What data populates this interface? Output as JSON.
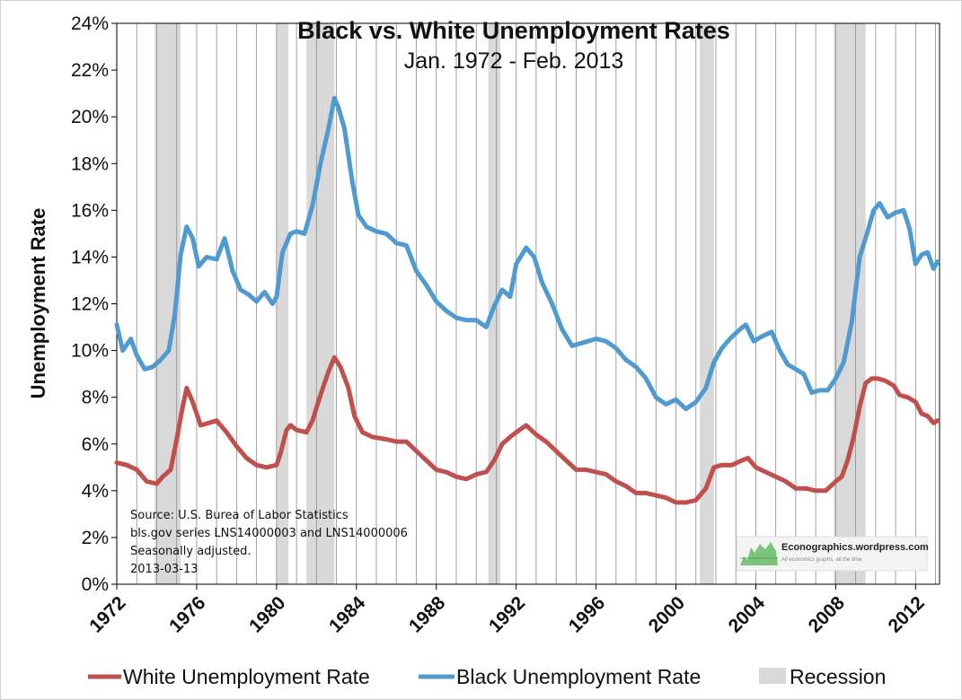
{
  "chart_data": {
    "type": "line",
    "title": "Black vs. White Unemployment Rates",
    "subtitle": "Jan. 1972 - Feb. 2013",
    "ylabel": "Unemployment Rate",
    "xlabel": "",
    "xlim": [
      1972,
      2013.2
    ],
    "ylim": [
      0,
      24
    ],
    "y_ticks": [
      "0%",
      "2%",
      "4%",
      "6%",
      "8%",
      "10%",
      "12%",
      "14%",
      "16%",
      "18%",
      "20%",
      "22%",
      "24%"
    ],
    "x_ticks": [
      "1972",
      "1976",
      "1980",
      "1984",
      "1988",
      "1992",
      "1996",
      "2000",
      "2004",
      "2008",
      "2012"
    ],
    "grid": "vertical at each year",
    "legend_position": "bottom",
    "legend": [
      "White Unemployment Rate",
      "Black Unemployment Rate",
      "Recession"
    ],
    "recessions": [
      [
        1973.9,
        1975.2
      ],
      [
        1980.0,
        1980.6
      ],
      [
        1981.5,
        1982.9
      ],
      [
        1990.6,
        1991.2
      ],
      [
        2001.2,
        2001.9
      ],
      [
        2007.9,
        2009.5
      ]
    ],
    "series": [
      {
        "name": "White Unemployment Rate",
        "color": "#c0504d",
        "points": [
          [
            1972.0,
            5.2
          ],
          [
            1972.5,
            5.1
          ],
          [
            1973.0,
            4.9
          ],
          [
            1973.5,
            4.4
          ],
          [
            1974.0,
            4.3
          ],
          [
            1974.3,
            4.6
          ],
          [
            1974.7,
            4.9
          ],
          [
            1975.0,
            6.2
          ],
          [
            1975.3,
            7.6
          ],
          [
            1975.5,
            8.4
          ],
          [
            1975.8,
            7.8
          ],
          [
            1976.2,
            6.8
          ],
          [
            1976.6,
            6.9
          ],
          [
            1977.0,
            7.0
          ],
          [
            1977.5,
            6.5
          ],
          [
            1978.0,
            5.9
          ],
          [
            1978.5,
            5.4
          ],
          [
            1979.0,
            5.1
          ],
          [
            1979.5,
            5.0
          ],
          [
            1980.0,
            5.1
          ],
          [
            1980.2,
            5.6
          ],
          [
            1980.5,
            6.6
          ],
          [
            1980.7,
            6.8
          ],
          [
            1981.0,
            6.6
          ],
          [
            1981.5,
            6.5
          ],
          [
            1981.8,
            7.0
          ],
          [
            1982.2,
            8.1
          ],
          [
            1982.6,
            9.1
          ],
          [
            1982.9,
            9.7
          ],
          [
            1983.2,
            9.3
          ],
          [
            1983.6,
            8.4
          ],
          [
            1983.9,
            7.2
          ],
          [
            1984.3,
            6.5
          ],
          [
            1984.8,
            6.3
          ],
          [
            1985.5,
            6.2
          ],
          [
            1986.0,
            6.1
          ],
          [
            1986.5,
            6.1
          ],
          [
            1987.0,
            5.7
          ],
          [
            1987.5,
            5.3
          ],
          [
            1988.0,
            4.9
          ],
          [
            1988.5,
            4.8
          ],
          [
            1989.0,
            4.6
          ],
          [
            1989.5,
            4.5
          ],
          [
            1990.0,
            4.7
          ],
          [
            1990.5,
            4.8
          ],
          [
            1990.9,
            5.3
          ],
          [
            1991.3,
            6.0
          ],
          [
            1991.7,
            6.3
          ],
          [
            1992.0,
            6.5
          ],
          [
            1992.5,
            6.8
          ],
          [
            1993.0,
            6.4
          ],
          [
            1993.5,
            6.1
          ],
          [
            1994.0,
            5.7
          ],
          [
            1994.5,
            5.3
          ],
          [
            1995.0,
            4.9
          ],
          [
            1995.5,
            4.9
          ],
          [
            1996.0,
            4.8
          ],
          [
            1996.5,
            4.7
          ],
          [
            1997.0,
            4.4
          ],
          [
            1997.5,
            4.2
          ],
          [
            1998.0,
            3.9
          ],
          [
            1998.5,
            3.9
          ],
          [
            1999.0,
            3.8
          ],
          [
            1999.5,
            3.7
          ],
          [
            2000.0,
            3.5
          ],
          [
            2000.5,
            3.5
          ],
          [
            2001.0,
            3.6
          ],
          [
            2001.5,
            4.1
          ],
          [
            2001.9,
            5.0
          ],
          [
            2002.3,
            5.1
          ],
          [
            2002.8,
            5.1
          ],
          [
            2003.3,
            5.3
          ],
          [
            2003.6,
            5.4
          ],
          [
            2004.0,
            5.0
          ],
          [
            2004.5,
            4.8
          ],
          [
            2005.0,
            4.6
          ],
          [
            2005.5,
            4.4
          ],
          [
            2006.0,
            4.1
          ],
          [
            2006.5,
            4.1
          ],
          [
            2007.0,
            4.0
          ],
          [
            2007.5,
            4.0
          ],
          [
            2008.0,
            4.4
          ],
          [
            2008.3,
            4.6
          ],
          [
            2008.6,
            5.3
          ],
          [
            2008.9,
            6.3
          ],
          [
            2009.2,
            7.6
          ],
          [
            2009.5,
            8.6
          ],
          [
            2009.8,
            8.8
          ],
          [
            2010.1,
            8.8
          ],
          [
            2010.5,
            8.7
          ],
          [
            2010.9,
            8.5
          ],
          [
            2011.2,
            8.1
          ],
          [
            2011.6,
            8.0
          ],
          [
            2012.0,
            7.8
          ],
          [
            2012.3,
            7.3
          ],
          [
            2012.6,
            7.2
          ],
          [
            2012.9,
            6.9
          ],
          [
            2013.1,
            7.0
          ]
        ]
      },
      {
        "name": "Black Unemployment Rate",
        "color": "#4f9bcf",
        "points": [
          [
            1972.0,
            11.1
          ],
          [
            1972.3,
            10.0
          ],
          [
            1972.7,
            10.5
          ],
          [
            1973.0,
            9.8
          ],
          [
            1973.4,
            9.2
          ],
          [
            1973.8,
            9.3
          ],
          [
            1974.2,
            9.6
          ],
          [
            1974.6,
            10.0
          ],
          [
            1974.9,
            11.5
          ],
          [
            1975.2,
            14.1
          ],
          [
            1975.5,
            15.3
          ],
          [
            1975.8,
            14.8
          ],
          [
            1976.1,
            13.6
          ],
          [
            1976.5,
            14.0
          ],
          [
            1977.0,
            13.9
          ],
          [
            1977.4,
            14.8
          ],
          [
            1977.8,
            13.4
          ],
          [
            1978.2,
            12.6
          ],
          [
            1978.6,
            12.4
          ],
          [
            1979.0,
            12.1
          ],
          [
            1979.4,
            12.5
          ],
          [
            1979.8,
            12.0
          ],
          [
            1980.0,
            12.3
          ],
          [
            1980.3,
            14.2
          ],
          [
            1980.7,
            15.0
          ],
          [
            1981.0,
            15.1
          ],
          [
            1981.4,
            15.0
          ],
          [
            1981.8,
            16.2
          ],
          [
            1982.2,
            18.0
          ],
          [
            1982.6,
            19.5
          ],
          [
            1982.9,
            20.8
          ],
          [
            1983.1,
            20.4
          ],
          [
            1983.4,
            19.5
          ],
          [
            1983.8,
            17.2
          ],
          [
            1984.1,
            15.8
          ],
          [
            1984.5,
            15.3
          ],
          [
            1985.0,
            15.1
          ],
          [
            1985.5,
            15.0
          ],
          [
            1986.0,
            14.6
          ],
          [
            1986.5,
            14.5
          ],
          [
            1987.0,
            13.4
          ],
          [
            1987.5,
            12.8
          ],
          [
            1988.0,
            12.1
          ],
          [
            1988.5,
            11.7
          ],
          [
            1989.0,
            11.4
          ],
          [
            1989.5,
            11.3
          ],
          [
            1990.0,
            11.3
          ],
          [
            1990.5,
            11.0
          ],
          [
            1990.9,
            11.9
          ],
          [
            1991.3,
            12.6
          ],
          [
            1991.7,
            12.3
          ],
          [
            1992.0,
            13.7
          ],
          [
            1992.5,
            14.4
          ],
          [
            1992.9,
            14.0
          ],
          [
            1993.3,
            12.9
          ],
          [
            1993.8,
            12.0
          ],
          [
            1994.3,
            10.9
          ],
          [
            1994.8,
            10.2
          ],
          [
            1995.2,
            10.3
          ],
          [
            1995.6,
            10.4
          ],
          [
            1996.0,
            10.5
          ],
          [
            1996.5,
            10.4
          ],
          [
            1997.0,
            10.1
          ],
          [
            1997.5,
            9.6
          ],
          [
            1998.0,
            9.3
          ],
          [
            1998.5,
            8.8
          ],
          [
            1999.0,
            8.0
          ],
          [
            1999.5,
            7.7
          ],
          [
            2000.0,
            7.9
          ],
          [
            2000.5,
            7.5
          ],
          [
            2001.0,
            7.8
          ],
          [
            2001.5,
            8.4
          ],
          [
            2001.9,
            9.5
          ],
          [
            2002.3,
            10.1
          ],
          [
            2002.7,
            10.5
          ],
          [
            2003.2,
            10.9
          ],
          [
            2003.5,
            11.1
          ],
          [
            2003.9,
            10.4
          ],
          [
            2004.3,
            10.6
          ],
          [
            2004.8,
            10.8
          ],
          [
            2005.2,
            10.0
          ],
          [
            2005.6,
            9.4
          ],
          [
            2006.0,
            9.2
          ],
          [
            2006.4,
            9.0
          ],
          [
            2006.8,
            8.2
          ],
          [
            2007.2,
            8.3
          ],
          [
            2007.6,
            8.3
          ],
          [
            2008.0,
            8.8
          ],
          [
            2008.4,
            9.5
          ],
          [
            2008.8,
            11.2
          ],
          [
            2009.2,
            14.0
          ],
          [
            2009.6,
            15.1
          ],
          [
            2009.9,
            16.0
          ],
          [
            2010.2,
            16.3
          ],
          [
            2010.6,
            15.7
          ],
          [
            2011.0,
            15.9
          ],
          [
            2011.4,
            16.0
          ],
          [
            2011.7,
            15.2
          ],
          [
            2012.0,
            13.7
          ],
          [
            2012.3,
            14.1
          ],
          [
            2012.6,
            14.2
          ],
          [
            2012.9,
            13.5
          ],
          [
            2013.1,
            13.8
          ]
        ]
      }
    ],
    "annotations": [
      "Source: U.S. Burea of Labor Statistics",
      "bls.gov series LNS14000003 and LNS14000006",
      "Seasonally adjusted.",
      "2013-03-13"
    ],
    "watermark": {
      "text": "Econographics.wordpress.com",
      "tagline": "All economics graphs, all the time."
    }
  }
}
